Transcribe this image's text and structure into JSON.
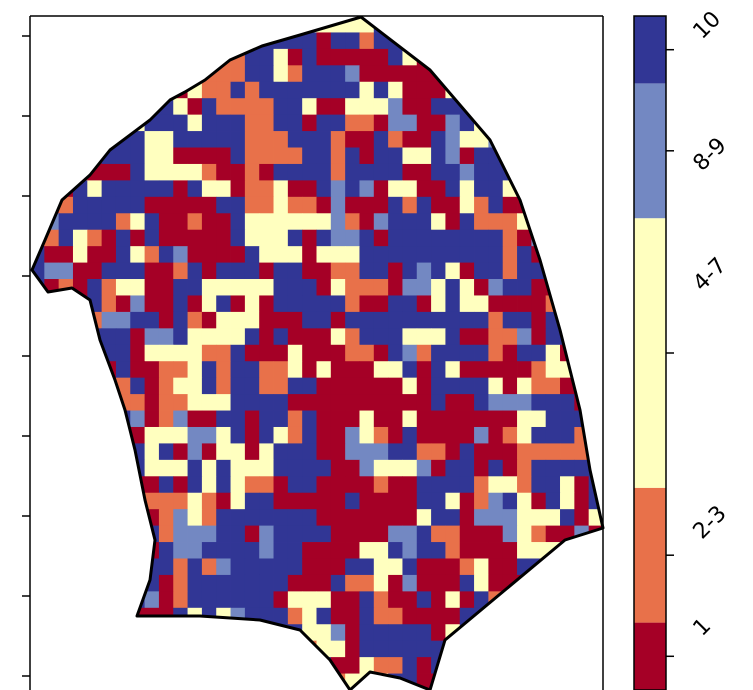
{
  "colorbar": {
    "classes": [
      {
        "label": "1",
        "color": "#a50026"
      },
      {
        "label": "2-3",
        "color": "#e8714a"
      },
      {
        "label": "4-7",
        "color": "#ffffbf"
      },
      {
        "label": "8-9",
        "color": "#7388c2"
      },
      {
        "label": "10",
        "color": "#313695"
      }
    ]
  },
  "map": {
    "border_color": "#000000",
    "grid_rows": 41,
    "grid_cols": 40,
    "class_share": [
      0.3,
      0.12,
      0.16,
      0.08,
      0.34
    ]
  }
}
